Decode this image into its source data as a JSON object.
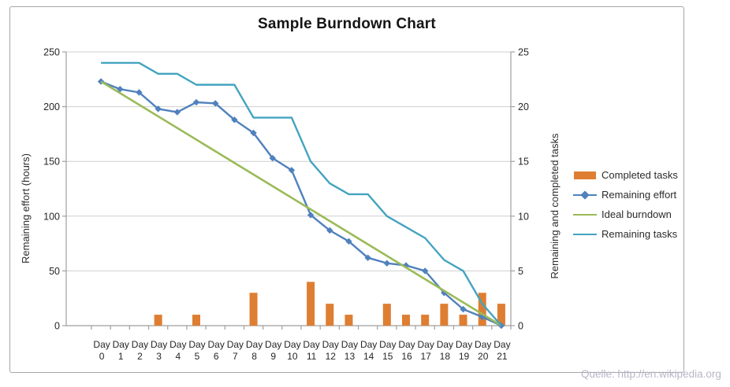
{
  "watermark": "Quelle: http://en.wikipedia.org",
  "chart_data": {
    "type": "combo",
    "title": "Sample Burndown Chart",
    "x_categories": [
      "Day 0",
      "Day 1",
      "Day 2",
      "Day 3",
      "Day 4",
      "Day 5",
      "Day 6",
      "Day 7",
      "Day 8",
      "Day 9",
      "Day 10",
      "Day 11",
      "Day 12",
      "Day 13",
      "Day 14",
      "Day 15",
      "Day 16",
      "Day 17",
      "Day 18",
      "Day 19",
      "Day 20",
      "Day 21"
    ],
    "left_axis": {
      "label": "Remaining effort (hours)",
      "min": 0,
      "max": 250,
      "ticks": [
        0,
        50,
        100,
        150,
        200,
        250
      ]
    },
    "right_axis": {
      "label": "Remaining and  completed tasks",
      "min": 0,
      "max": 25,
      "ticks": [
        0,
        5,
        10,
        15,
        20,
        25
      ]
    },
    "grid": true,
    "legend_position": "right",
    "series": [
      {
        "name": "Completed tasks",
        "type": "bar",
        "axis": "right",
        "color": "#de7e32",
        "values": [
          0,
          0,
          0,
          1,
          0,
          1,
          0,
          0,
          3,
          0,
          0,
          4,
          2,
          1,
          0,
          2,
          1,
          1,
          2,
          1,
          3,
          2
        ]
      },
      {
        "name": "Remaining effort",
        "type": "line-diamond",
        "axis": "left",
        "color": "#4f81bd",
        "values": [
          223,
          216,
          213,
          198,
          195,
          204,
          203,
          188,
          176,
          153,
          142,
          101,
          87,
          77,
          62,
          57,
          55,
          50,
          30,
          15,
          8,
          0
        ]
      },
      {
        "name": "Ideal burndown",
        "type": "line",
        "axis": "left",
        "color": "#9bbb59",
        "start": 223,
        "end": 0
      },
      {
        "name": "Remaining tasks",
        "type": "line",
        "axis": "right",
        "color": "#44a4c0",
        "values": [
          24,
          24,
          24,
          23,
          23,
          22,
          22,
          22,
          19,
          19,
          19,
          15,
          13,
          12,
          12,
          10,
          9,
          8,
          6,
          5,
          2,
          0
        ]
      }
    ],
    "colors": {
      "grid": "#cfcfcf",
      "axis": "#9f9f9f",
      "frame": "#a6a6a6"
    }
  }
}
